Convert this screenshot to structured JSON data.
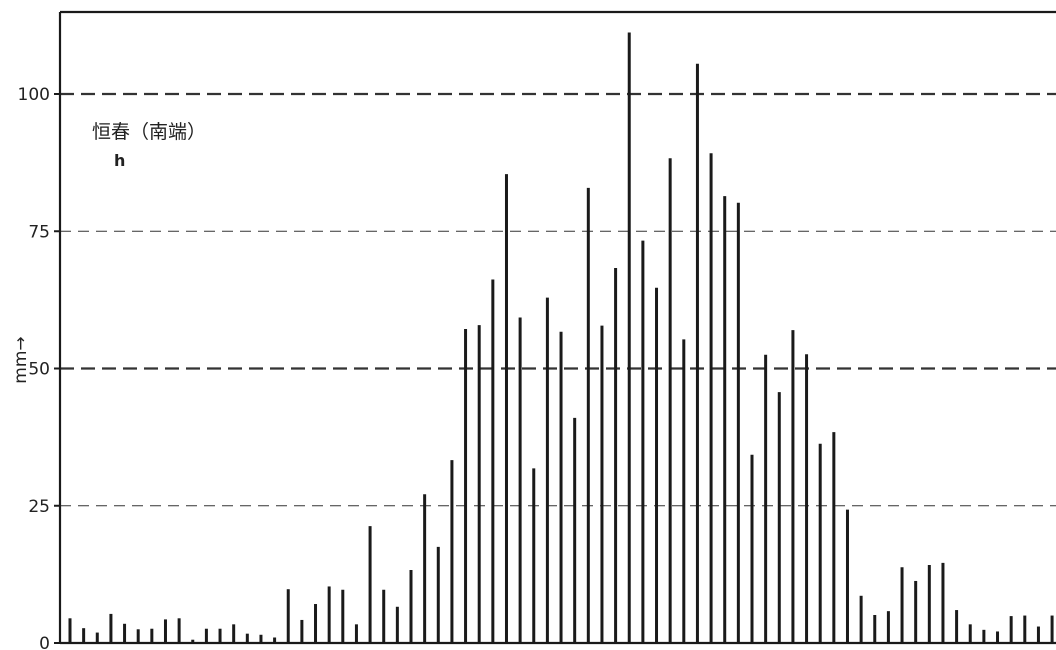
{
  "chart_data": {
    "type": "bar",
    "title": "",
    "annotation": "恒春（南端）",
    "annotation_sub": "h",
    "ylabel": "mm→",
    "xlabel": "",
    "ylim": [
      0,
      115
    ],
    "yticks": [
      0,
      25,
      50,
      75,
      100
    ],
    "ytick_labels": [
      "0",
      "25",
      "50",
      "75",
      "100"
    ],
    "grid_lines": [
      {
        "value": 25,
        "style": "thin-dashed"
      },
      {
        "value": 50,
        "style": "thick-dashed"
      },
      {
        "value": 75,
        "style": "thin-dashed"
      },
      {
        "value": 100,
        "style": "thick-dashed"
      }
    ],
    "values": [
      4.5,
      2.7,
      1.9,
      5.3,
      3.5,
      2.5,
      2.6,
      4.3,
      4.5,
      0.6,
      2.6,
      2.6,
      3.4,
      1.7,
      1.5,
      1.0,
      9.8,
      4.2,
      7.1,
      10.3,
      9.7,
      3.4,
      21.3,
      9.7,
      6.6,
      13.3,
      27.1,
      17.5,
      33.3,
      57.2,
      57.9,
      66.2,
      85.4,
      59.3,
      31.8,
      62.9,
      56.7,
      41.0,
      82.9,
      57.8,
      68.3,
      111.2,
      73.3,
      64.7,
      88.3,
      55.3,
      105.5,
      89.2,
      81.4,
      80.2,
      34.3,
      52.5,
      45.7,
      57.0,
      52.6,
      36.3,
      38.4,
      24.3,
      8.6,
      5.1,
      5.8,
      13.8,
      11.3,
      14.2,
      14.6,
      6.0,
      3.4,
      2.4,
      2.1,
      4.9,
      5.0,
      3.0,
      5.0
    ],
    "colors": {
      "bar": "#1a1a1a",
      "axis": "#1a1a1a",
      "grid": "#333333"
    }
  }
}
